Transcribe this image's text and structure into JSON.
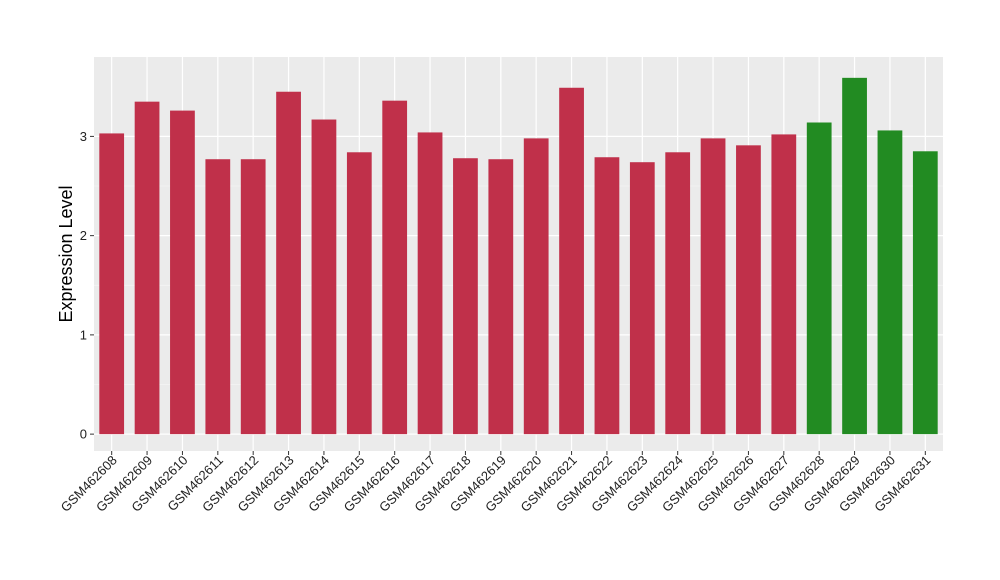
{
  "chart_data": {
    "type": "bar",
    "title": "",
    "xlabel": "",
    "ylabel": "Expression Level",
    "ylim": [
      -0.17,
      3.8
    ],
    "yticks": [
      0,
      1,
      2,
      3
    ],
    "grid": true,
    "categories": [
      "GSM462608",
      "GSM462609",
      "GSM462610",
      "GSM462611",
      "GSM462612",
      "GSM462613",
      "GSM462614",
      "GSM462615",
      "GSM462616",
      "GSM462617",
      "GSM462618",
      "GSM462619",
      "GSM462620",
      "GSM462621",
      "GSM462622",
      "GSM462623",
      "GSM462624",
      "GSM462625",
      "GSM462626",
      "GSM462627",
      "GSM462628",
      "GSM462629",
      "GSM462630",
      "GSM462631"
    ],
    "values": [
      3.03,
      3.35,
      3.26,
      2.77,
      2.77,
      3.45,
      3.17,
      2.84,
      3.36,
      3.04,
      2.78,
      2.77,
      2.98,
      3.49,
      2.79,
      2.74,
      2.84,
      2.98,
      2.91,
      3.02,
      3.14,
      3.59,
      3.06,
      2.85
    ],
    "bar_colors": [
      "#c0304a",
      "#c0304a",
      "#c0304a",
      "#c0304a",
      "#c0304a",
      "#c0304a",
      "#c0304a",
      "#c0304a",
      "#c0304a",
      "#c0304a",
      "#c0304a",
      "#c0304a",
      "#c0304a",
      "#c0304a",
      "#c0304a",
      "#c0304a",
      "#c0304a",
      "#c0304a",
      "#c0304a",
      "#c0304a",
      "#228b22",
      "#228b22",
      "#228b22",
      "#228b22"
    ],
    "colors": {
      "panel_background": "#ebebeb",
      "grid_major": "#ffffff",
      "grid_minor": "#f5f5f5",
      "group_a": "#c0304a",
      "group_b": "#228b22"
    }
  }
}
